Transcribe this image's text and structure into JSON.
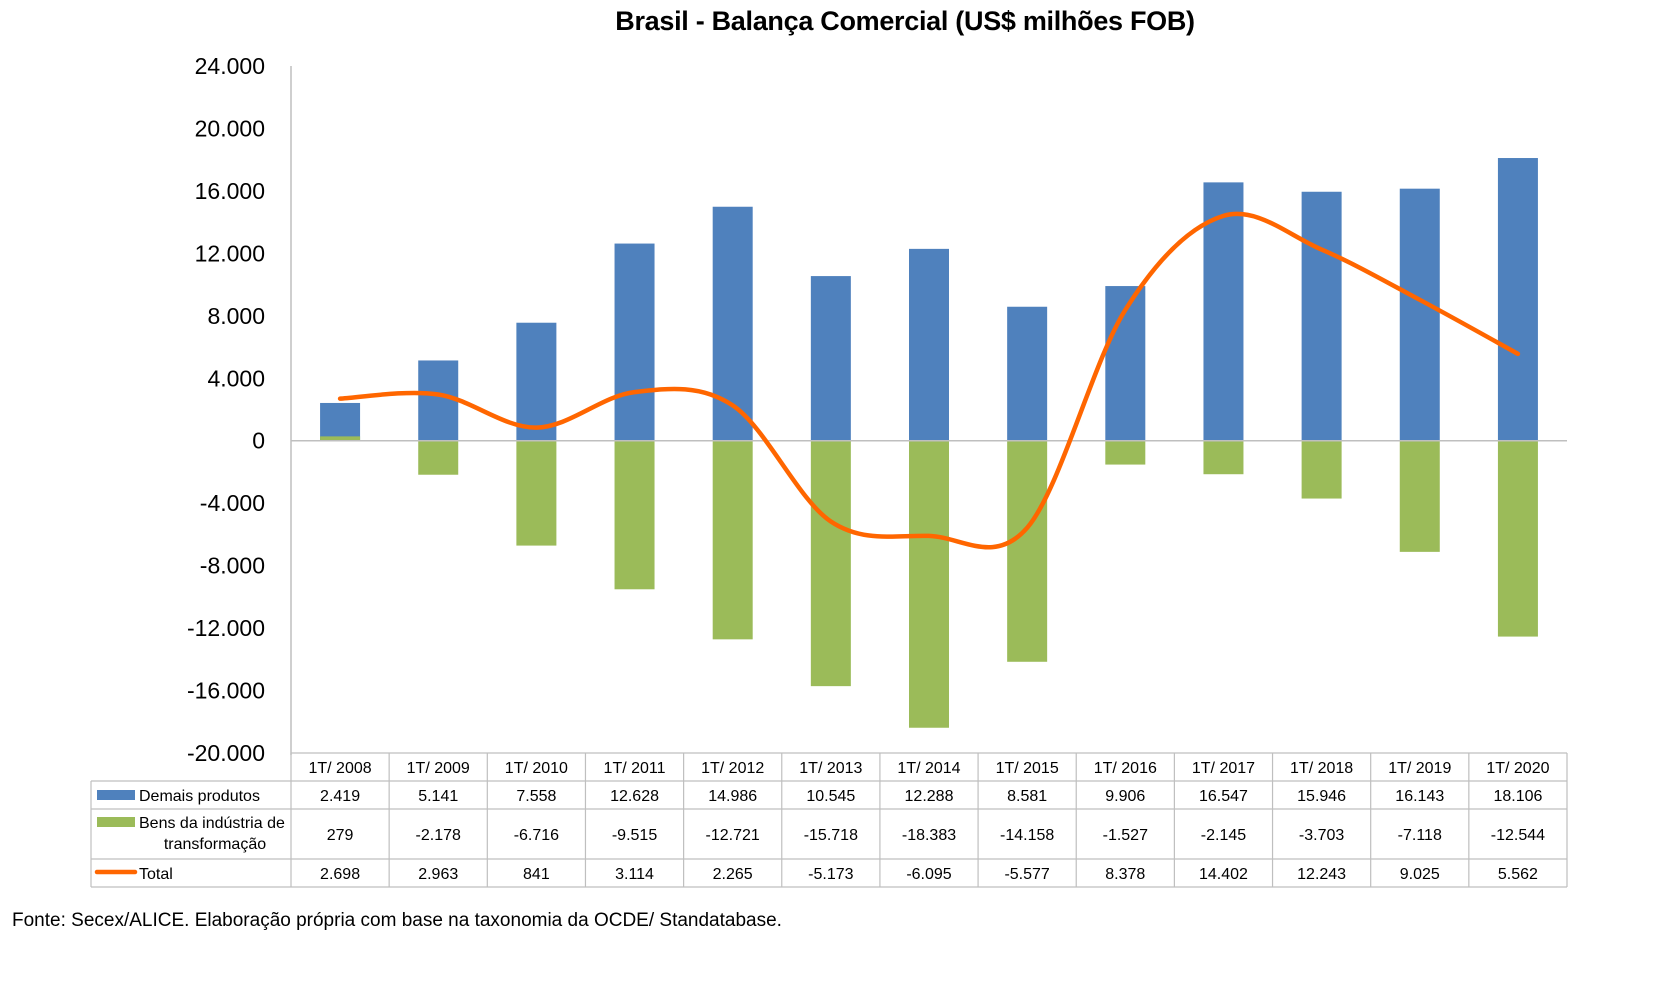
{
  "chart_data": {
    "type": "bar",
    "title": "Brasil - Balança Comercial (US$ milhões FOB)",
    "xlabel": "",
    "ylabel": "",
    "ylim": [
      -20000,
      24000
    ],
    "yticks": [
      24000,
      20000,
      16000,
      12000,
      8000,
      4000,
      0,
      -4000,
      -8000,
      -12000,
      -16000,
      -20000
    ],
    "ytick_labels": [
      "24.000",
      "20.000",
      "16.000",
      "12.000",
      "8.000",
      "4.000",
      "0",
      "-4.000",
      "-8.000",
      "-12.000",
      "-16.000",
      "-20.000"
    ],
    "grid": false,
    "legend_placement": "bottom (data table)",
    "categories": [
      "1T/ 2008",
      "1T/ 2009",
      "1T/ 2010",
      "1T/ 2011",
      "1T/ 2012",
      "1T/ 2013",
      "1T/ 2014",
      "1T/ 2015",
      "1T/ 2016",
      "1T/ 2017",
      "1T/ 2018",
      "1T/ 2019",
      "1T/ 2020"
    ],
    "series": [
      {
        "name": "Demais produtos",
        "legend_label_lines": [
          "Demais produtos"
        ],
        "type": "bar",
        "color": "#4F81BD",
        "values": [
          2419,
          5141,
          7558,
          12628,
          14986,
          10545,
          12288,
          8581,
          9906,
          16547,
          15946,
          16143,
          18106
        ],
        "value_labels": [
          "2.419",
          "5.141",
          "7.558",
          "12.628",
          "14.986",
          "10.545",
          "12.288",
          "8.581",
          "9.906",
          "16.547",
          "15.946",
          "16.143",
          "18.106"
        ]
      },
      {
        "name": "Bens da indústria de transformação",
        "legend_label_lines": [
          "Bens da indústria de",
          "transformação"
        ],
        "type": "bar",
        "color": "#9BBB59",
        "values": [
          279,
          -2178,
          -6716,
          -9515,
          -12721,
          -15718,
          -18383,
          -14158,
          -1527,
          -2145,
          -3703,
          -7118,
          -12544
        ],
        "value_labels": [
          "279",
          "-2.178",
          "-6.716",
          "-9.515",
          "-12.721",
          "-15.718",
          "-18.383",
          "-14.158",
          "-1.527",
          "-2.145",
          "-3.703",
          "-7.118",
          "-12.544"
        ]
      },
      {
        "name": "Total",
        "legend_label_lines": [
          "Total"
        ],
        "type": "line",
        "smooth": true,
        "color": "#FF6600",
        "values": [
          2698,
          2963,
          841,
          3114,
          2265,
          -5173,
          -6095,
          -5577,
          8378,
          14402,
          12243,
          9025,
          5562
        ],
        "value_labels": [
          "2.698",
          "2.963",
          "841",
          "3.114",
          "2.265",
          "-5.173",
          "-6.095",
          "-5.577",
          "8.378",
          "14.402",
          "12.243",
          "9.025",
          "5.562"
        ]
      }
    ]
  },
  "source_note": "Fonte: Secex/ALICE. Elaboração própria com base na taxonomia da OCDE/ Standatabase.",
  "colors": {
    "axis": "#BFBFBF",
    "table_border": "#BFBFBF"
  }
}
